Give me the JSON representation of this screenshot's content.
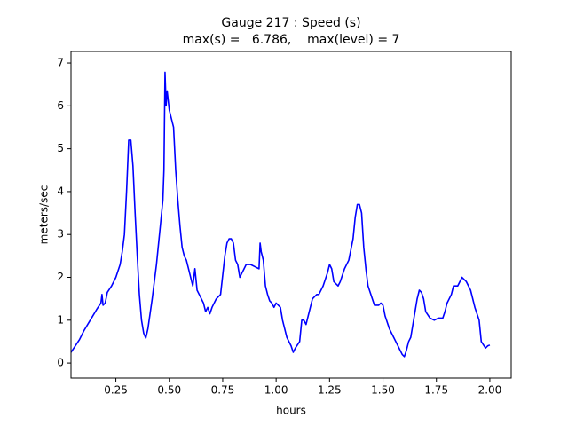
{
  "chart_data": {
    "type": "line",
    "title": "Gauge 217 : Speed (s)",
    "subtitle": "max(s) =   6.786,    max(level) = 7",
    "xlabel": "hours",
    "ylabel": "meters/sec",
    "xlim": [
      0.04,
      2.1
    ],
    "ylim": [
      -0.35,
      7.27
    ],
    "xticks": [
      0.25,
      {
        "value": 0.5,
        "label": "0.50"
      },
      0.75,
      {
        "value": 1,
        "label": "1.00"
      },
      1.25,
      {
        "value": 1.5,
        "label": "1.50"
      },
      1.75,
      {
        "value": 2,
        "label": "2.00"
      }
    ],
    "yticks": [
      0,
      1,
      2,
      3,
      4,
      5,
      6,
      7
    ],
    "grid": false,
    "x": [
      0.04,
      0.08,
      0.1,
      0.13,
      0.16,
      0.18,
      0.185,
      0.19,
      0.2,
      0.21,
      0.23,
      0.25,
      0.27,
      0.28,
      0.29,
      0.3,
      0.31,
      0.32,
      0.33,
      0.34,
      0.35,
      0.36,
      0.37,
      0.38,
      0.39,
      0.4,
      0.42,
      0.44,
      0.45,
      0.46,
      0.47,
      0.475,
      0.48,
      0.485,
      0.49,
      0.5,
      0.51,
      0.52,
      0.53,
      0.54,
      0.55,
      0.56,
      0.57,
      0.58,
      0.59,
      0.6,
      0.61,
      0.62,
      0.63,
      0.64,
      0.66,
      0.67,
      0.68,
      0.69,
      0.7,
      0.72,
      0.74,
      0.76,
      0.77,
      0.78,
      0.79,
      0.8,
      0.81,
      0.82,
      0.83,
      0.84,
      0.85,
      0.86,
      0.88,
      0.9,
      0.92,
      0.925,
      0.93,
      0.94,
      0.95,
      0.96,
      0.97,
      0.98,
      0.99,
      1.0,
      1.02,
      1.03,
      1.04,
      1.05,
      1.07,
      1.08,
      1.09,
      1.11,
      1.12,
      1.13,
      1.14,
      1.15,
      1.17,
      1.19,
      1.2,
      1.22,
      1.24,
      1.25,
      1.26,
      1.27,
      1.29,
      1.3,
      1.32,
      1.34,
      1.36,
      1.37,
      1.38,
      1.39,
      1.4,
      1.41,
      1.42,
      1.43,
      1.45,
      1.46,
      1.48,
      1.49,
      1.5,
      1.51,
      1.53,
      1.55,
      1.57,
      1.58,
      1.59,
      1.6,
      1.61,
      1.62,
      1.63,
      1.64,
      1.65,
      1.66,
      1.67,
      1.68,
      1.69,
      1.7,
      1.72,
      1.74,
      1.76,
      1.78,
      1.79,
      1.8,
      1.82,
      1.83,
      1.85,
      1.87,
      1.89,
      1.91,
      1.93,
      1.95,
      1.96,
      1.98,
      1.99,
      2.0
    ],
    "series": [
      {
        "name": "speed",
        "color": "#0000ff",
        "values": [
          0.25,
          0.55,
          0.75,
          1.0,
          1.25,
          1.4,
          1.6,
          1.35,
          1.4,
          1.65,
          1.8,
          2.0,
          2.3,
          2.6,
          3.0,
          4.0,
          5.2,
          5.2,
          4.6,
          3.5,
          2.5,
          1.6,
          1.0,
          0.7,
          0.58,
          0.8,
          1.5,
          2.3,
          2.8,
          3.3,
          3.8,
          4.5,
          6.786,
          6.0,
          6.35,
          5.9,
          5.7,
          5.5,
          4.5,
          3.8,
          3.2,
          2.7,
          2.5,
          2.4,
          2.2,
          2.0,
          1.8,
          2.2,
          1.7,
          1.6,
          1.4,
          1.2,
          1.3,
          1.15,
          1.3,
          1.5,
          1.6,
          2.5,
          2.8,
          2.9,
          2.9,
          2.8,
          2.4,
          2.3,
          2.0,
          2.1,
          2.2,
          2.3,
          2.3,
          2.25,
          2.2,
          2.8,
          2.6,
          2.4,
          1.8,
          1.6,
          1.45,
          1.4,
          1.3,
          1.4,
          1.3,
          1.0,
          0.8,
          0.6,
          0.4,
          0.25,
          0.35,
          0.5,
          1.0,
          1.0,
          0.9,
          1.1,
          1.5,
          1.6,
          1.6,
          1.8,
          2.1,
          2.3,
          2.2,
          1.9,
          1.8,
          1.9,
          2.2,
          2.4,
          2.9,
          3.4,
          3.7,
          3.7,
          3.5,
          2.7,
          2.2,
          1.8,
          1.5,
          1.35,
          1.35,
          1.4,
          1.35,
          1.1,
          0.8,
          0.6,
          0.4,
          0.3,
          0.2,
          0.15,
          0.3,
          0.5,
          0.6,
          0.9,
          1.2,
          1.5,
          1.7,
          1.65,
          1.5,
          1.2,
          1.05,
          1.0,
          1.05,
          1.05,
          1.2,
          1.4,
          1.6,
          1.8,
          1.8,
          2.0,
          1.9,
          1.7,
          1.3,
          1.0,
          0.5,
          0.35,
          0.4,
          0.42
        ]
      }
    ]
  }
}
